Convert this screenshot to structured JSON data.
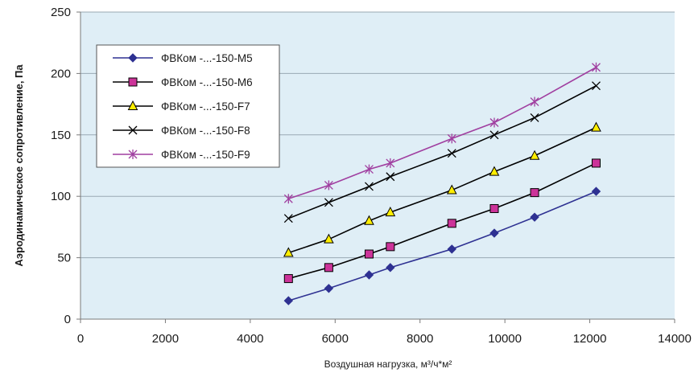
{
  "chart_data": {
    "type": "line",
    "title": "",
    "xlabel": "Воздушная нагрузка, м³/ч*м²",
    "ylabel": "Аэродинамическое сопротивление, Па",
    "xlim": [
      0,
      14000
    ],
    "ylim": [
      0,
      250
    ],
    "xticks": [
      0,
      2000,
      4000,
      6000,
      8000,
      10000,
      12000,
      14000
    ],
    "yticks": [
      0,
      50,
      100,
      150,
      200,
      250
    ],
    "grid": "horizontal",
    "legend_position": "top-left",
    "x": [
      4900,
      5850,
      6800,
      7300,
      8750,
      9750,
      10700,
      12150
    ],
    "series": [
      {
        "name": "ФВКом -...-150-М5",
        "values": [
          15,
          25,
          36,
          42,
          57,
          70,
          83,
          104
        ],
        "color": "#2e3192",
        "marker": "diamond"
      },
      {
        "name": "ФВКом -...-150-М6",
        "values": [
          33,
          42,
          53,
          59,
          78,
          90,
          103,
          127
        ],
        "color": "#000000",
        "marker": "square",
        "marker_fill": "#cc3399"
      },
      {
        "name": "ФВКом -...-150-F7",
        "values": [
          54,
          65,
          80,
          87,
          105,
          120,
          133,
          156
        ],
        "color": "#000000",
        "marker": "triangle",
        "marker_fill": "#ffee00"
      },
      {
        "name": "ФВКом -...-150-F8",
        "values": [
          82,
          95,
          108,
          116,
          135,
          150,
          164,
          190
        ],
        "color": "#000000",
        "marker": "x"
      },
      {
        "name": "ФВКом -...-150-F9",
        "values": [
          98,
          109,
          122,
          127,
          147,
          160,
          177,
          205
        ],
        "color": "#a03fa0",
        "marker": "asterisk"
      }
    ],
    "colors": {
      "plot_bg": "#dfeef6",
      "grid": "#9aa9b3",
      "axis": "#7a7a7a"
    }
  }
}
